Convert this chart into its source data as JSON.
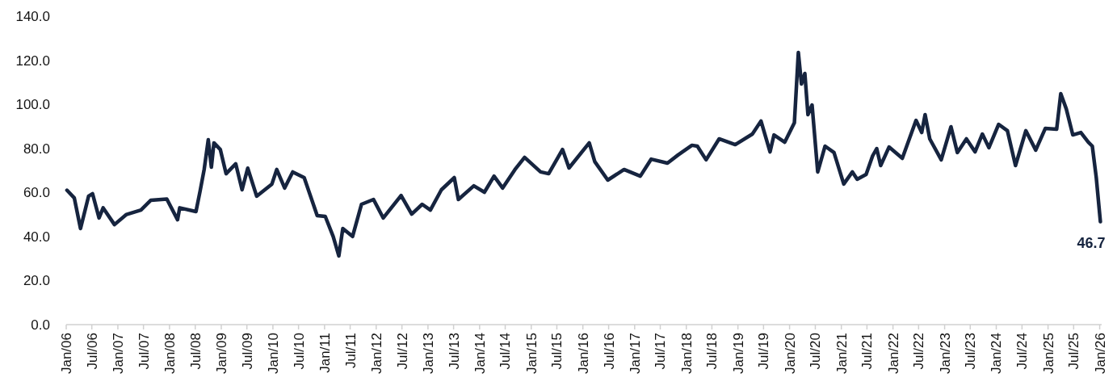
{
  "chart_data": {
    "type": "line",
    "line_style": "solid",
    "marker": "none",
    "grid": false,
    "x": [
      "2006-01-06",
      "2006-02-27",
      "2006-04-12",
      "2006-06-08",
      "2006-07-06",
      "2006-08-21",
      "2006-09-19",
      "2006-12-08",
      "2007-03-03",
      "2007-06-13",
      "2007-08-21",
      "2007-12-13",
      "2008-02-27",
      "2008-03-13",
      "2008-07-06",
      "2008-08-04",
      "2008-09-02",
      "2008-10-01",
      "2008-10-23",
      "2008-11-10",
      "2008-12-25",
      "2009-02-04",
      "2009-04-13",
      "2009-05-28",
      "2009-07-07",
      "2009-09-08",
      "2009-12-25",
      "2010-01-28",
      "2010-03-25",
      "2010-05-21",
      "2010-08-10",
      "2010-11-10",
      "2011-01-06",
      "2011-03-03",
      "2011-04-12",
      "2011-05-10",
      "2011-07-18",
      "2011-09-19",
      "2011-12-13",
      "2012-02-20",
      "2012-06-25",
      "2012-09-08",
      "2012-11-21",
      "2013-01-18",
      "2013-04-06",
      "2013-07-06",
      "2013-08-04",
      "2013-11-21",
      "2014-02-04",
      "2014-04-13",
      "2014-06-13",
      "2014-09-08",
      "2014-11-15",
      "2015-03-08",
      "2015-05-04",
      "2015-08-10",
      "2015-09-25",
      "2016-02-15",
      "2016-03-25",
      "2016-06-25",
      "2016-10-18",
      "2017-02-10",
      "2017-04-28",
      "2017-08-21",
      "2017-11-04",
      "2018-02-10",
      "2018-03-20",
      "2018-05-21",
      "2018-08-21",
      "2018-12-13",
      "2019-04-13",
      "2019-06-13",
      "2019-08-16",
      "2019-09-13",
      "2019-11-28",
      "2020-02-04",
      "2020-03-03",
      "2020-03-25",
      "2020-04-18",
      "2020-05-10",
      "2020-06-08",
      "2020-07-18",
      "2020-09-08",
      "2020-11-10",
      "2021-01-18",
      "2021-03-20",
      "2021-04-23",
      "2021-06-25",
      "2021-08-10",
      "2021-09-08",
      "2021-10-06",
      "2021-12-04",
      "2022-03-08",
      "2022-06-13",
      "2022-07-23",
      "2022-08-16",
      "2022-09-18",
      "2022-12-08",
      "2023-02-15",
      "2023-04-01",
      "2023-06-04",
      "2023-08-04",
      "2023-09-25",
      "2023-11-10",
      "2024-01-18",
      "2024-03-20",
      "2024-05-16",
      "2024-07-28",
      "2024-10-06",
      "2024-12-13",
      "2025-03-03",
      "2025-04-01",
      "2025-05-10",
      "2025-06-25",
      "2025-08-21",
      "2025-10-13",
      "2025-11-10",
      "2025-12-08",
      "2026-01-06"
    ],
    "series": [
      {
        "color": "#16243f",
        "values": [
          61,
          57.5,
          43.6,
          58.3,
          59.4,
          48.4,
          53,
          45.4,
          50,
          52,
          56.4,
          57,
          47.6,
          53,
          51.3,
          60.5,
          70.4,
          83.9,
          71.5,
          82.5,
          79.5,
          68.5,
          73,
          61.2,
          71,
          58.3,
          63.8,
          70.4,
          62,
          69.3,
          66.7,
          49.5,
          49.1,
          40,
          31.2,
          43.6,
          40,
          54.6,
          56.8,
          48.4,
          58.6,
          50.2,
          54.6,
          52,
          61.2,
          66.7,
          56.8,
          63,
          60.1,
          67.4,
          62,
          70.4,
          75.9,
          69.3,
          68.5,
          79.5,
          71.1,
          82.5,
          74,
          65.6,
          70.4,
          67.4,
          75.1,
          73.3,
          77,
          81.4,
          81,
          74.8,
          84.3,
          81.7,
          86.5,
          92.4,
          78.4,
          86.1,
          82.8,
          91.6,
          123.5,
          109.2,
          114,
          95.3,
          99.7,
          69.3,
          81,
          78.1,
          63.8,
          69.3,
          66,
          68.2,
          76.6,
          79.9,
          72.2,
          80.6,
          75.5,
          92.7,
          87.2,
          95.3,
          84.3,
          74.8,
          89.8,
          78.1,
          84.3,
          78.4,
          86.5,
          80.3,
          90.9,
          88,
          72.2,
          88,
          79.2,
          89.1,
          88.7,
          104.8,
          97.9,
          86.1,
          87.2,
          82.8,
          81,
          66.7,
          46.7
        ]
      }
    ],
    "xlim": [
      "2006-01-01",
      "2026-01-15"
    ],
    "xticks": [
      {
        "value": "2006-01-01",
        "label": "Jan/06"
      },
      {
        "value": "2006-07-01",
        "label": "Jul/06"
      },
      {
        "value": "2007-01-01",
        "label": "Jan/07"
      },
      {
        "value": "2007-07-01",
        "label": "Jul/07"
      },
      {
        "value": "2008-01-01",
        "label": "Jan/08"
      },
      {
        "value": "2008-07-01",
        "label": "Jul/08"
      },
      {
        "value": "2009-01-01",
        "label": "Jan/09"
      },
      {
        "value": "2009-07-01",
        "label": "Jul/09"
      },
      {
        "value": "2010-01-01",
        "label": "Jan/10"
      },
      {
        "value": "2010-07-01",
        "label": "Jul/10"
      },
      {
        "value": "2011-01-01",
        "label": "Jan/11"
      },
      {
        "value": "2011-07-01",
        "label": "Jul/11"
      },
      {
        "value": "2012-01-01",
        "label": "Jan/12"
      },
      {
        "value": "2012-07-01",
        "label": "Jul/12"
      },
      {
        "value": "2013-01-01",
        "label": "Jan/13"
      },
      {
        "value": "2013-07-01",
        "label": "Jul/13"
      },
      {
        "value": "2014-01-01",
        "label": "Jan/14"
      },
      {
        "value": "2014-07-01",
        "label": "Jul/14"
      },
      {
        "value": "2015-01-01",
        "label": "Jan/15"
      },
      {
        "value": "2015-07-01",
        "label": "Jul/15"
      },
      {
        "value": "2016-01-01",
        "label": "Jan/16"
      },
      {
        "value": "2016-07-01",
        "label": "Jul/16"
      },
      {
        "value": "2017-01-01",
        "label": "Jan/17"
      },
      {
        "value": "2017-07-01",
        "label": "Jul/17"
      },
      {
        "value": "2018-01-01",
        "label": "Jan/18"
      },
      {
        "value": "2018-07-01",
        "label": "Jul/18"
      },
      {
        "value": "2019-01-01",
        "label": "Jan/19"
      },
      {
        "value": "2019-07-01",
        "label": "Jul/19"
      },
      {
        "value": "2020-01-01",
        "label": "Jan/20"
      },
      {
        "value": "2020-07-01",
        "label": "Jul/20"
      },
      {
        "value": "2021-01-01",
        "label": "Jan/21"
      },
      {
        "value": "2021-07-01",
        "label": "Jul/21"
      },
      {
        "value": "2022-01-01",
        "label": "Jan/22"
      },
      {
        "value": "2022-07-01",
        "label": "Jul/22"
      },
      {
        "value": "2023-01-01",
        "label": "Jan/23"
      },
      {
        "value": "2023-07-01",
        "label": "Jul/23"
      },
      {
        "value": "2024-01-01",
        "label": "Jan/24"
      },
      {
        "value": "2024-07-01",
        "label": "Jul/24"
      },
      {
        "value": "2025-01-01",
        "label": "Jan/25"
      },
      {
        "value": "2025-07-01",
        "label": "Jul/25"
      },
      {
        "value": "2026-01-01",
        "label": "Jan/26"
      }
    ],
    "ylim": [
      0,
      140
    ],
    "yticks": [
      {
        "value": 0,
        "label": "0.0"
      },
      {
        "value": 20,
        "label": "20.0"
      },
      {
        "value": 40,
        "label": "40.0"
      },
      {
        "value": 60,
        "label": "60.0"
      },
      {
        "value": 80,
        "label": "80.0"
      },
      {
        "value": 100,
        "label": "100.0"
      },
      {
        "value": 120,
        "label": "120.0"
      },
      {
        "value": 140,
        "label": "140.0"
      }
    ],
    "annotations": [
      {
        "text": "46.7",
        "x": "2026-01-06",
        "y": 46.7
      }
    ]
  }
}
